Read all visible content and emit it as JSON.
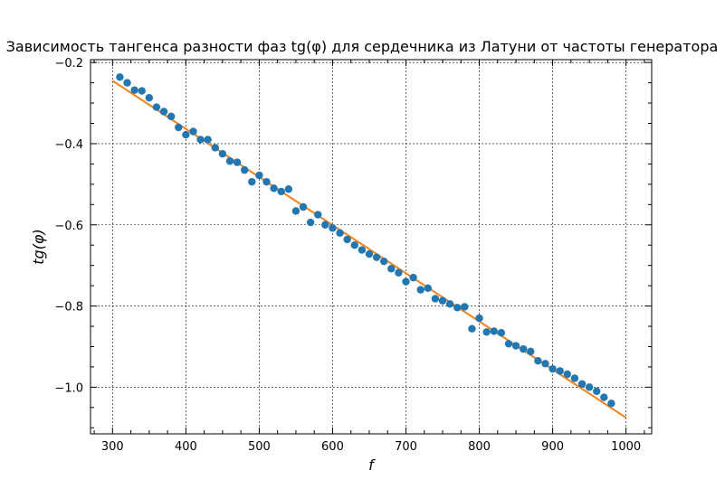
{
  "chart_data": {
    "type": "scatter",
    "title": "Зависимость тангенса разности фаз tg(φ) для сердечника из Латуни от частоты генератора",
    "xlabel": "f",
    "ylabel": "tg(φ)",
    "xlim": [
      270,
      1035
    ],
    "ylim": [
      -1.115,
      -0.193
    ],
    "xticks": [
      300,
      400,
      500,
      600,
      700,
      800,
      900,
      1000
    ],
    "yticks": [
      -1.0,
      -0.8,
      -0.6,
      -0.4,
      -0.2
    ],
    "xtick_labels": [
      "300",
      "400",
      "500",
      "600",
      "700",
      "800",
      "900",
      "1000"
    ],
    "ytick_labels": [
      "−1.0",
      "−0.8",
      "−0.6",
      "−0.4",
      "−0.2"
    ],
    "grid": true,
    "grid_style": "dashed",
    "series": [
      {
        "kind": "scatter",
        "color": "#1f77b4",
        "x": [
          310,
          320,
          330,
          340,
          350,
          360,
          370,
          380,
          390,
          400,
          410,
          420,
          430,
          440,
          450,
          460,
          470,
          480,
          490,
          500,
          510,
          520,
          530,
          540,
          550,
          560,
          570,
          580,
          590,
          600,
          610,
          620,
          630,
          640,
          650,
          660,
          670,
          680,
          690,
          700,
          710,
          720,
          730,
          740,
          750,
          760,
          770,
          780,
          790,
          800,
          810,
          820,
          830,
          840,
          850,
          860,
          870,
          880,
          890,
          900,
          910,
          920,
          930,
          940,
          950,
          960,
          970,
          980
        ],
        "y": [
          -0.236,
          -0.25,
          -0.268,
          -0.27,
          -0.287,
          -0.31,
          -0.321,
          -0.333,
          -0.36,
          -0.378,
          -0.37,
          -0.39,
          -0.39,
          -0.41,
          -0.425,
          -0.443,
          -0.446,
          -0.465,
          -0.494,
          -0.478,
          -0.494,
          -0.51,
          -0.518,
          -0.512,
          -0.566,
          -0.556,
          -0.594,
          -0.575,
          -0.6,
          -0.608,
          -0.62,
          -0.636,
          -0.65,
          -0.662,
          -0.672,
          -0.68,
          -0.69,
          -0.708,
          -0.718,
          -0.74,
          -0.73,
          -0.76,
          -0.756,
          -0.782,
          -0.787,
          -0.795,
          -0.804,
          -0.802,
          -0.856,
          -0.83,
          -0.864,
          -0.862,
          -0.866,
          -0.893,
          -0.898,
          -0.906,
          -0.912,
          -0.935,
          -0.942,
          -0.955,
          -0.96,
          -0.968,
          -0.978,
          -0.992,
          -1.0,
          -1.01,
          -1.025,
          -1.04
        ]
      },
      {
        "kind": "line",
        "color": "#ff7f0e",
        "x": [
          300,
          1000
        ],
        "y": [
          -0.245,
          -1.075
        ]
      }
    ]
  }
}
